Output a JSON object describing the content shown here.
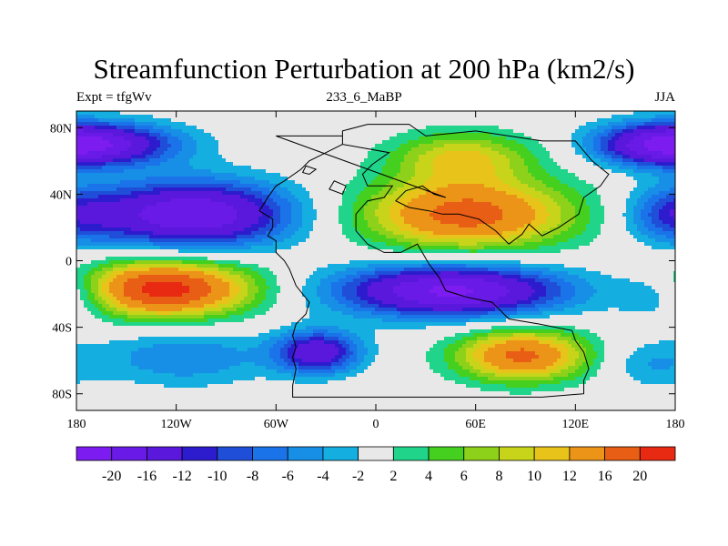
{
  "title": "Streamfunction Perturbation at 200 hPa (km2/s)",
  "subtitle_left": "Expt = tfgWv",
  "subtitle_center": "233_6_MaBP",
  "subtitle_right": "JJA",
  "colors": {
    "background": "#ffffff",
    "missing": "#ebebeb",
    "outline": "#000000",
    "bins": [
      "#7c1cf0",
      "#6a1ae6",
      "#5a18dc",
      "#2d1ccd",
      "#1f4fd8",
      "#1a73e8",
      "#178fe6",
      "#14aee0",
      "#e8e8e8",
      "#20d58a",
      "#45cf1e",
      "#8ed11a",
      "#c8d41a",
      "#e8c31a",
      "#ec9418",
      "#e85e14",
      "#e82a12"
    ]
  },
  "chart_data": {
    "type": "heatmap",
    "projection": "cylindrical equidistant",
    "xlim": [
      -180,
      180
    ],
    "ylim": [
      -90,
      90
    ],
    "x_ticks": [
      {
        "value": -180,
        "label": "180"
      },
      {
        "value": -120,
        "label": "120W"
      },
      {
        "value": -60,
        "label": "60W"
      },
      {
        "value": 0,
        "label": "0"
      },
      {
        "value": 60,
        "label": "60E"
      },
      {
        "value": 120,
        "label": "120E"
      },
      {
        "value": 180,
        "label": "180"
      }
    ],
    "y_ticks": [
      {
        "value": 80,
        "label": "80N"
      },
      {
        "value": 40,
        "label": "40N"
      },
      {
        "value": 0,
        "label": "0"
      },
      {
        "value": -40,
        "label": "40S"
      },
      {
        "value": -80,
        "label": "80S"
      }
    ],
    "colorbar": {
      "levels": [
        -20,
        -16,
        -12,
        -10,
        -8,
        -6,
        -4,
        -2,
        2,
        4,
        6,
        8,
        10,
        12,
        16,
        20
      ],
      "labels": [
        "-20",
        "-16",
        "-12",
        "-10",
        "-8",
        "-6",
        "-4",
        "-2",
        "2",
        "4",
        "6",
        "8",
        "10",
        "12",
        "16",
        "20"
      ]
    },
    "field_centers": [
      {
        "lon": -128,
        "lat": -17,
        "value": 22,
        "sx": 38,
        "sy": 12
      },
      {
        "lon": 55,
        "lat": 28,
        "value": 18,
        "sx": 45,
        "sy": 15
      },
      {
        "lon": 52,
        "lat": 62,
        "value": 10,
        "sx": 30,
        "sy": 11
      },
      {
        "lon": 88,
        "lat": -57,
        "value": 17,
        "sx": 28,
        "sy": 11
      },
      {
        "lon": -110,
        "lat": 28,
        "value": -20,
        "sx": 42,
        "sy": 14
      },
      {
        "lon": -160,
        "lat": 70,
        "value": -14,
        "sx": 32,
        "sy": 9
      },
      {
        "lon": 167,
        "lat": 70,
        "value": -14,
        "sx": 26,
        "sy": 9
      },
      {
        "lon": 178,
        "lat": 28,
        "value": -8,
        "sx": 20,
        "sy": 12
      },
      {
        "lon": 45,
        "lat": -18,
        "value": -21,
        "sx": 48,
        "sy": 11
      },
      {
        "lon": 175,
        "lat": -20,
        "value": -7,
        "sx": 20,
        "sy": 11
      },
      {
        "lon": -35,
        "lat": -55,
        "value": -15,
        "sx": 18,
        "sy": 9
      },
      {
        "lon": -115,
        "lat": -58,
        "value": -6,
        "sx": 35,
        "sy": 12
      },
      {
        "lon": 165,
        "lat": -62,
        "value": -4,
        "sx": 20,
        "sy": 10
      }
    ],
    "land_outline": [
      [
        [
          -60,
          75
        ],
        [
          -20,
          75
        ],
        [
          -20,
          70
        ],
        [
          -30,
          65
        ],
        [
          -40,
          60
        ],
        [
          -45,
          55
        ],
        [
          -55,
          48
        ],
        [
          -60,
          45
        ],
        [
          -65,
          38
        ],
        [
          -70,
          30
        ],
        [
          -62,
          25
        ],
        [
          -62,
          20
        ],
        [
          -65,
          15
        ],
        [
          -60,
          12
        ],
        [
          -60,
          5
        ],
        [
          -55,
          0
        ],
        [
          -52,
          -5
        ],
        [
          -48,
          -15
        ],
        [
          -40,
          -25
        ],
        [
          -42,
          -32
        ],
        [
          -48,
          -38
        ],
        [
          -50,
          -45
        ],
        [
          -48,
          -52
        ],
        [
          -50,
          -58
        ],
        [
          -48,
          -65
        ],
        [
          -50,
          -75
        ],
        [
          -50,
          -82
        ],
        [
          100,
          -82
        ],
        [
          125,
          -80
        ],
        [
          125,
          -72
        ],
        [
          128,
          -65
        ],
        [
          125,
          -55
        ],
        [
          120,
          -48
        ],
        [
          118,
          -42
        ],
        [
          98,
          -38
        ],
        [
          80,
          -35
        ],
        [
          70,
          -25
        ],
        [
          55,
          -22
        ],
        [
          42,
          -18
        ],
        [
          38,
          -10
        ],
        [
          32,
          -2
        ],
        [
          25,
          10
        ],
        [
          15,
          5
        ],
        [
          5,
          5
        ],
        [
          -5,
          10
        ],
        [
          -12,
          18
        ],
        [
          -12,
          28
        ],
        [
          -5,
          36
        ],
        [
          5,
          38
        ],
        [
          10,
          45
        ],
        [
          -5,
          45
        ],
        [
          -8,
          52
        ],
        [
          -2,
          58
        ],
        [
          8,
          65
        ],
        [
          -20,
          70
        ],
        [
          -20,
          78
        ],
        [
          -5,
          82
        ],
        [
          20,
          82
        ],
        [
          30,
          75
        ],
        [
          60,
          78
        ],
        [
          80,
          75
        ],
        [
          100,
          72
        ],
        [
          120,
          72
        ],
        [
          130,
          60
        ],
        [
          140,
          52
        ],
        [
          135,
          45
        ],
        [
          125,
          38
        ],
        [
          122,
          28
        ],
        [
          110,
          20
        ],
        [
          100,
          15
        ],
        [
          92,
          22
        ],
        [
          88,
          16
        ],
        [
          80,
          10
        ],
        [
          72,
          18
        ],
        [
          62,
          25
        ],
        [
          50,
          28
        ],
        [
          40,
          28
        ],
        [
          32,
          30
        ],
        [
          20,
          32
        ],
        [
          12,
          36
        ],
        [
          18,
          42
        ],
        [
          28,
          45
        ],
        [
          35,
          40
        ],
        [
          42,
          38
        ]
      ],
      [
        [
          -20,
          40
        ],
        [
          -18,
          45
        ],
        [
          -25,
          48
        ],
        [
          -28,
          43
        ],
        [
          -20,
          40
        ]
      ],
      [
        [
          -40,
          52
        ],
        [
          -36,
          55
        ],
        [
          -42,
          57
        ],
        [
          -44,
          53
        ],
        [
          -40,
          52
        ]
      ]
    ]
  }
}
